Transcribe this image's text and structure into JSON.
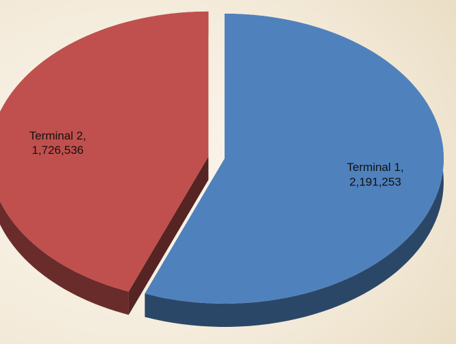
{
  "chart_data": {
    "type": "pie",
    "categories": [
      "Terminal 1,",
      "Terminal 2,"
    ],
    "values": [
      2191253,
      1726536
    ],
    "value_labels": [
      "2,191,253",
      "1,726,536"
    ],
    "colors": [
      "#4f81bd",
      "#c0504d"
    ]
  }
}
